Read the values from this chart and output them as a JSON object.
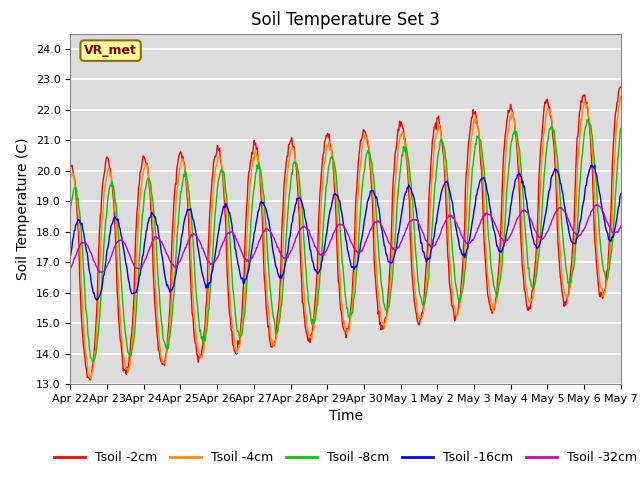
{
  "title": "Soil Temperature Set 3",
  "xlabel": "Time",
  "ylabel": "Soil Temperature (C)",
  "ylim": [
    13.0,
    24.5
  ],
  "yticks": [
    13.0,
    14.0,
    15.0,
    16.0,
    17.0,
    18.0,
    19.0,
    20.0,
    21.0,
    22.0,
    23.0,
    24.0
  ],
  "colors": {
    "Tsoil -2cm": "#FF0000",
    "Tsoil -4cm": "#FF8C00",
    "Tsoil -8cm": "#00CC00",
    "Tsoil -16cm": "#0000FF",
    "Tsoil -32cm": "#CC00CC"
  },
  "background_color": "#DCDCDC",
  "annotation_text": "VR_met",
  "annotation_color": "#8B0000",
  "annotation_bg": "#FFFF99",
  "annotation_border": "#8B6914",
  "title_fontsize": 12,
  "axis_label_fontsize": 10,
  "tick_fontsize": 8,
  "legend_fontsize": 9,
  "num_points": 720
}
